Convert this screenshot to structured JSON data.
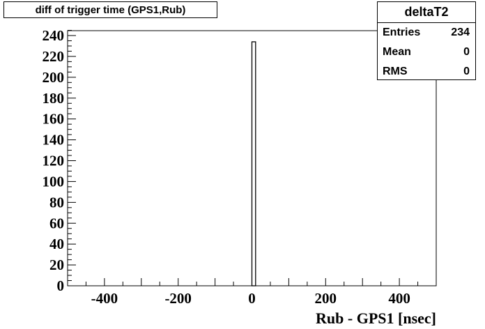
{
  "title": "diff of trigger time (GPS1,Rub)",
  "stats": {
    "name": "deltaT2",
    "rows": [
      {
        "label": "Entries",
        "value": "234"
      },
      {
        "label": "Mean",
        "value": "0"
      },
      {
        "label": "RMS",
        "value": "0"
      }
    ]
  },
  "chart_data": {
    "type": "bar",
    "title": "diff of trigger time (GPS1,Rub)",
    "xlabel": "Rub - GPS1 [nsec]",
    "ylabel": "",
    "xlim": [
      -500,
      500
    ],
    "ylim": [
      0,
      245
    ],
    "xticks": [
      -400,
      -200,
      0,
      200,
      400
    ],
    "xtick_labels": [
      "-400",
      "-200",
      "0",
      "200",
      "400"
    ],
    "yticks": [
      0,
      20,
      40,
      60,
      80,
      100,
      120,
      140,
      160,
      180,
      200,
      220,
      240
    ],
    "ytick_labels": [
      "0",
      "20",
      "40",
      "60",
      "80",
      "100",
      "120",
      "140",
      "160",
      "180",
      "200",
      "220",
      "240"
    ],
    "bins": [
      {
        "x0": 0,
        "x1": 10,
        "value": 234
      }
    ],
    "grid": false,
    "legend": "none"
  }
}
